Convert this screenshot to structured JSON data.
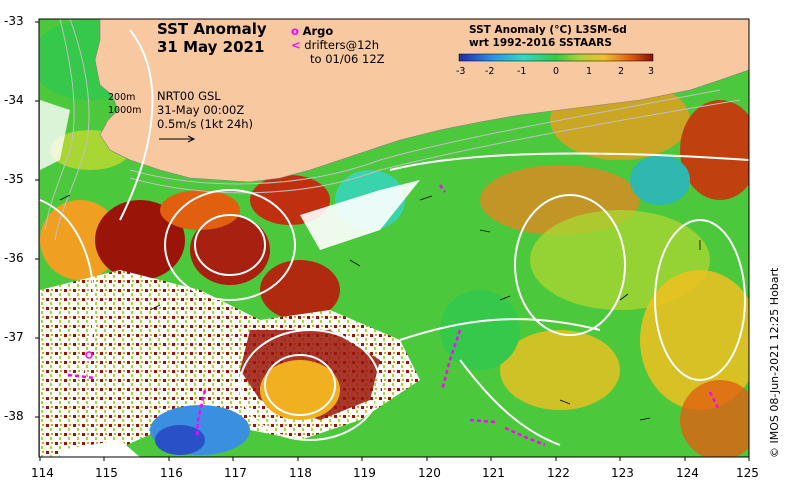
{
  "title": {
    "line1": "SST Anomaly",
    "line2": "31 May 2021"
  },
  "legend_argo": {
    "label": "Argo",
    "symbol": "o",
    "color": "#ff00ff"
  },
  "legend_drifters": {
    "symbol": "<",
    "line1": "drifters@12h",
    "line2": "to 01/06 12Z",
    "color": "#ff00ff"
  },
  "contour_labels": {
    "first": "200m",
    "second": "1000m"
  },
  "current_info": {
    "line1": "NRT00 GSL",
    "line2": "31-May 00:00Z",
    "line3": "0.5m/s (1kt 24h)"
  },
  "colorbar": {
    "title1": "SST Anomaly (°C) L3SM-6d",
    "title2": "wrt 1992-2016 SSTAARS",
    "ticks": [
      "-3",
      "-2",
      "-1",
      "0",
      "1",
      "2",
      "3"
    ],
    "colors": [
      "#1f2aa8",
      "#2f8fe0",
      "#35d6c8",
      "#36c84a",
      "#a8d632",
      "#f0c020",
      "#e06010",
      "#8a0f0a"
    ]
  },
  "x_axis": {
    "ticks": [
      "114",
      "115",
      "116",
      "117",
      "118",
      "119",
      "120",
      "121",
      "122",
      "123",
      "124",
      "125"
    ]
  },
  "y_axis": {
    "ticks": [
      "-33",
      "-34",
      "-35",
      "-36",
      "-37",
      "-38"
    ]
  },
  "land_color": "#f8c8a0",
  "credit": "© IMOS 08-Jun-2021 12:25 Hobart"
}
